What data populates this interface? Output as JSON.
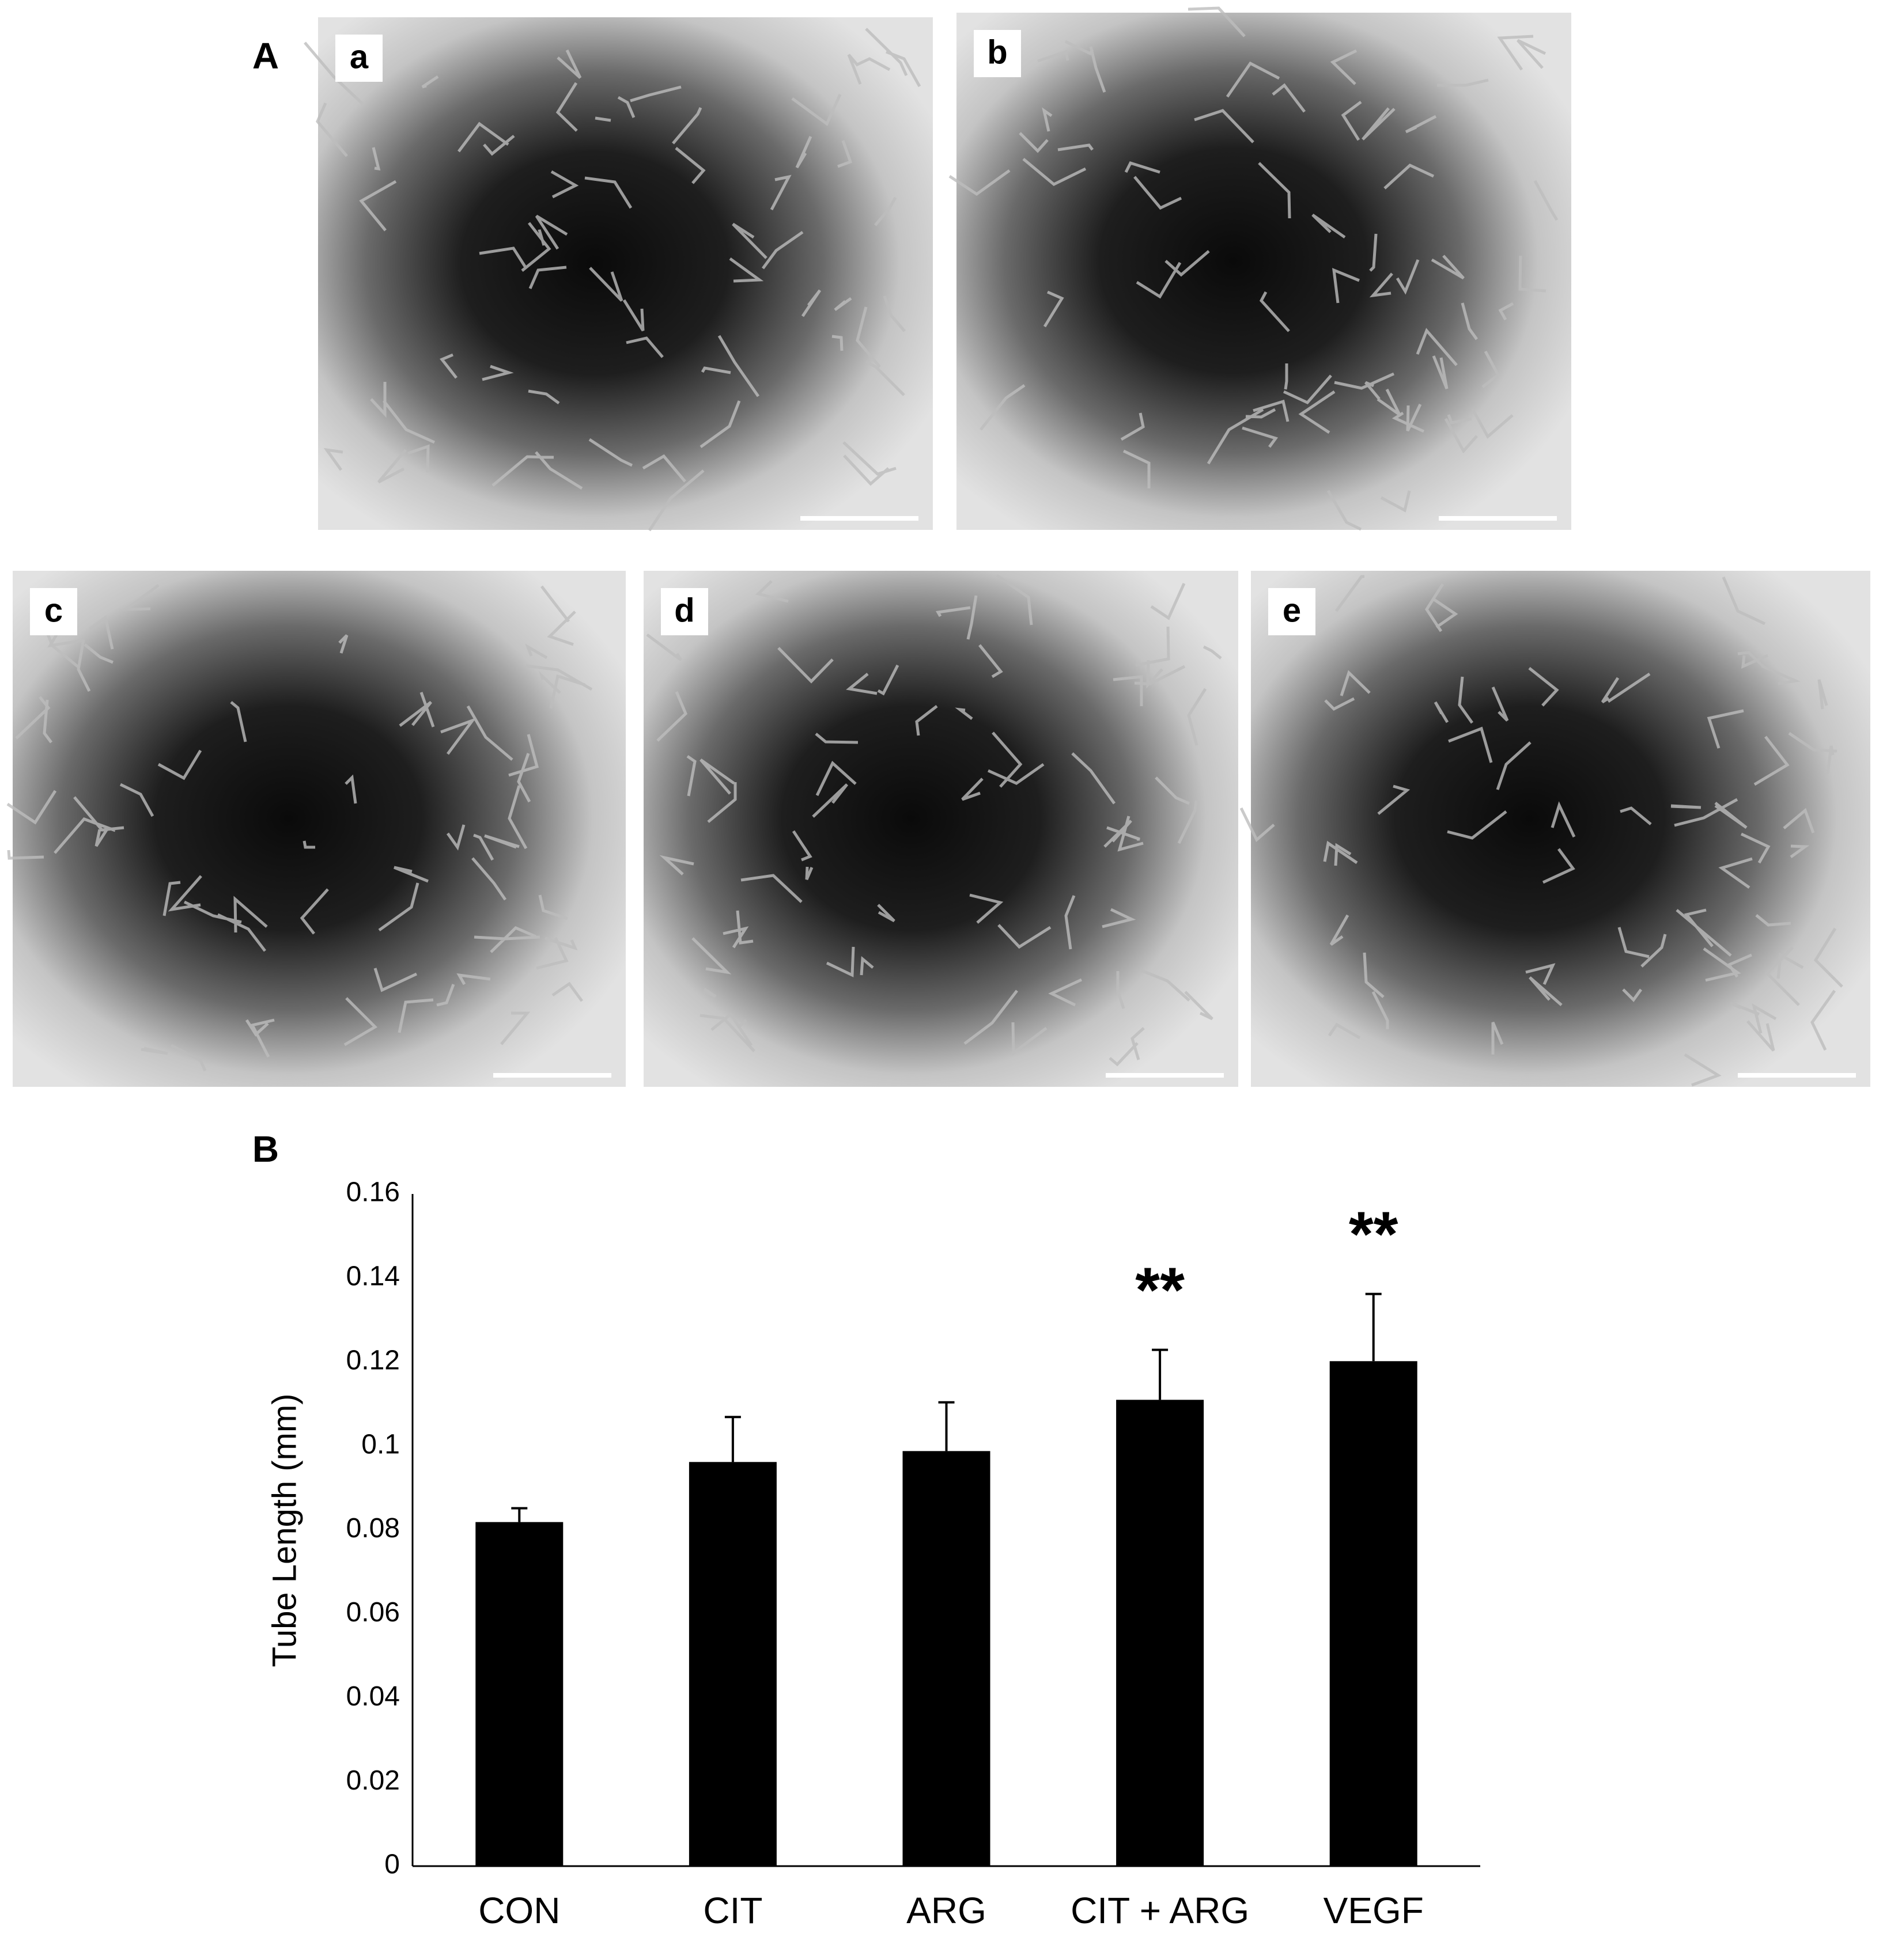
{
  "figure_panel": {
    "label": "A",
    "images": [
      {
        "label": "a"
      },
      {
        "label": "b"
      },
      {
        "label": "c"
      },
      {
        "label": "d"
      },
      {
        "label": "e"
      }
    ]
  },
  "chart_data": {
    "type": "bar",
    "panel_label": "B",
    "y_label": "Tube Length (mm)",
    "categories": [
      "CON",
      "CIT",
      "ARG",
      "CIT + ARG",
      "VEGF"
    ],
    "values": [
      0.0819,
      0.0962,
      0.0988,
      0.111,
      0.1202
    ],
    "errors": [
      0.0033,
      0.0107,
      0.0116,
      0.0119,
      0.016
    ],
    "color": "#000000",
    "annotations": [
      {
        "category": "CIT + ARG",
        "text": "**"
      },
      {
        "category": "VEGF",
        "text": "**"
      }
    ],
    "ylim": [
      0,
      0.16
    ],
    "yticks": [
      0,
      0.02,
      0.04,
      0.06,
      0.08,
      0.1,
      0.12,
      0.14,
      0.16
    ],
    "grid": false
  }
}
